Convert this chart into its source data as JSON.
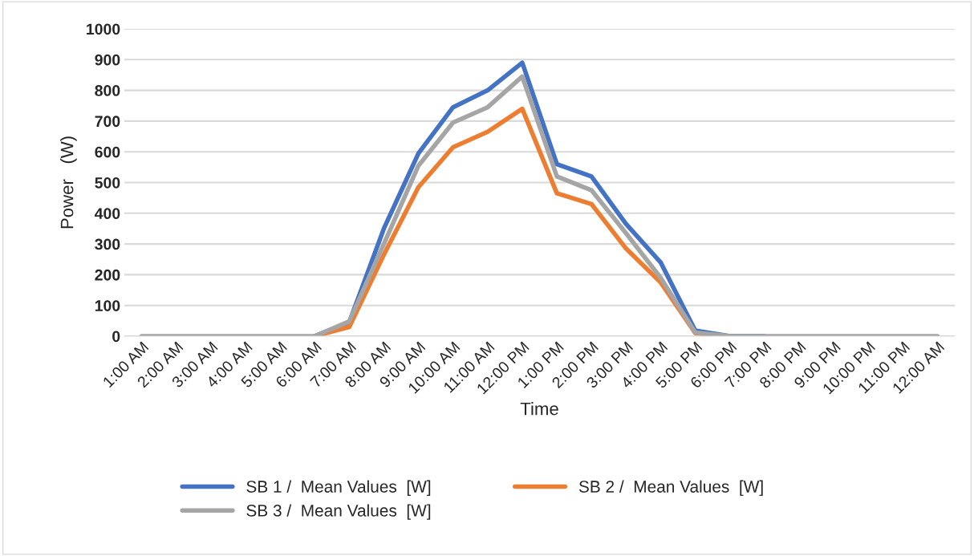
{
  "chart_data": {
    "type": "line",
    "xlabel": "Time",
    "ylabel": "Power   (W)",
    "categories": [
      "1:00 AM",
      "2:00 AM",
      "3:00 AM",
      "4:00 AM",
      "5:00 AM",
      "6:00 AM",
      "7:00 AM",
      "8:00 AM",
      "9:00 AM",
      "10:00 AM",
      "11:00 AM",
      "12:00 PM",
      "1:00 PM",
      "2:00 PM",
      "3:00 PM",
      "4:00 PM",
      "5:00 PM",
      "6:00 PM",
      "7:00 PM",
      "8:00 PM",
      "9:00 PM",
      "10:00 PM",
      "11:00 PM",
      "12:00 AM"
    ],
    "series": [
      {
        "name": "SB 1 /  Mean Values  [W]",
        "color": "#4472c4",
        "values": [
          null,
          null,
          null,
          null,
          null,
          0,
          45,
          350,
          595,
          745,
          800,
          890,
          560,
          520,
          365,
          240,
          18,
          0,
          0,
          null,
          null,
          null,
          null,
          null
        ]
      },
      {
        "name": "SB 2 /  Mean Values  [W]",
        "color": "#ed7d31",
        "values": [
          null,
          null,
          null,
          null,
          null,
          0,
          30,
          265,
          485,
          615,
          665,
          740,
          465,
          430,
          285,
          175,
          10,
          0,
          null,
          null,
          null,
          null,
          null,
          null
        ]
      },
      {
        "name": "SB 3 /  Mean Values  [W]",
        "color": "#a5a5a5",
        "values": [
          0,
          0,
          0,
          0,
          0,
          0,
          48,
          300,
          555,
          695,
          745,
          845,
          520,
          475,
          335,
          190,
          12,
          0,
          0,
          0,
          0,
          0,
          0,
          0
        ]
      }
    ],
    "ylim": [
      0,
      1000
    ],
    "yticks": [
      0,
      100,
      200,
      300,
      400,
      500,
      600,
      700,
      800,
      900,
      1000
    ],
    "grid": "y",
    "legend": "bottom",
    "marker": "none",
    "line_style": "solid"
  }
}
